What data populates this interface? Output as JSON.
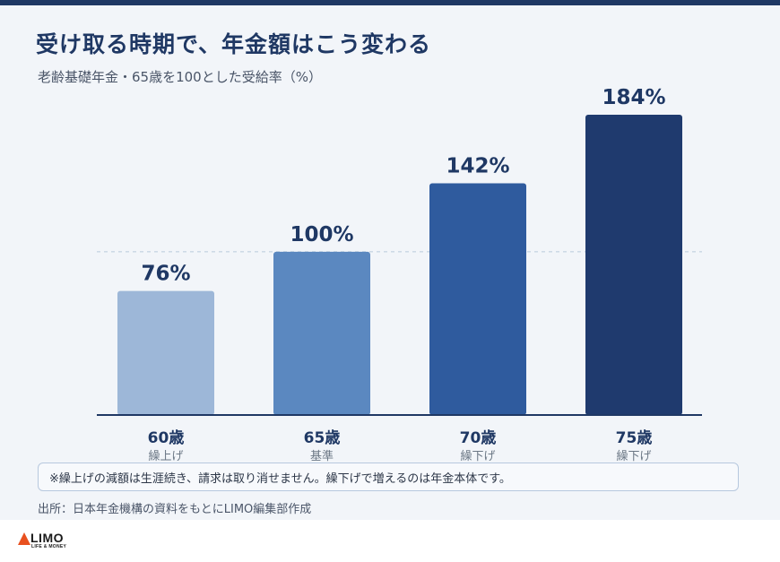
{
  "header": {
    "title": "受け取る時期で、年金額はこう変わる",
    "subtitle": "老齢基礎年金・65歳を100とした受給率（%）"
  },
  "chart_data": {
    "type": "bar",
    "categories": [
      "60歳",
      "65歳",
      "70歳",
      "75歳"
    ],
    "sublabels": [
      "繰上げ",
      "基準",
      "繰下げ",
      "繰下げ"
    ],
    "values": [
      76,
      100,
      142,
      184
    ],
    "value_labels": [
      "76%",
      "100%",
      "142%",
      "184%"
    ],
    "colors": [
      "#9db7d8",
      "#5b88c0",
      "#2f5b9e",
      "#1f3a6e"
    ],
    "ylim": [
      0,
      184
    ],
    "reference_line": 100,
    "grid": false,
    "legend": "none"
  },
  "note": "※繰上げの減額は生涯続き、請求は取り消せません。繰下げで増えるのは年金本体です。",
  "source": "出所：日本年金機構の資料をもとにLIMO編集部作成",
  "logo": {
    "name": "LIMO",
    "tagline": "LIFE & MONEY"
  },
  "colors": {
    "accent": "#1f3864",
    "background": "#f2f5f9"
  }
}
